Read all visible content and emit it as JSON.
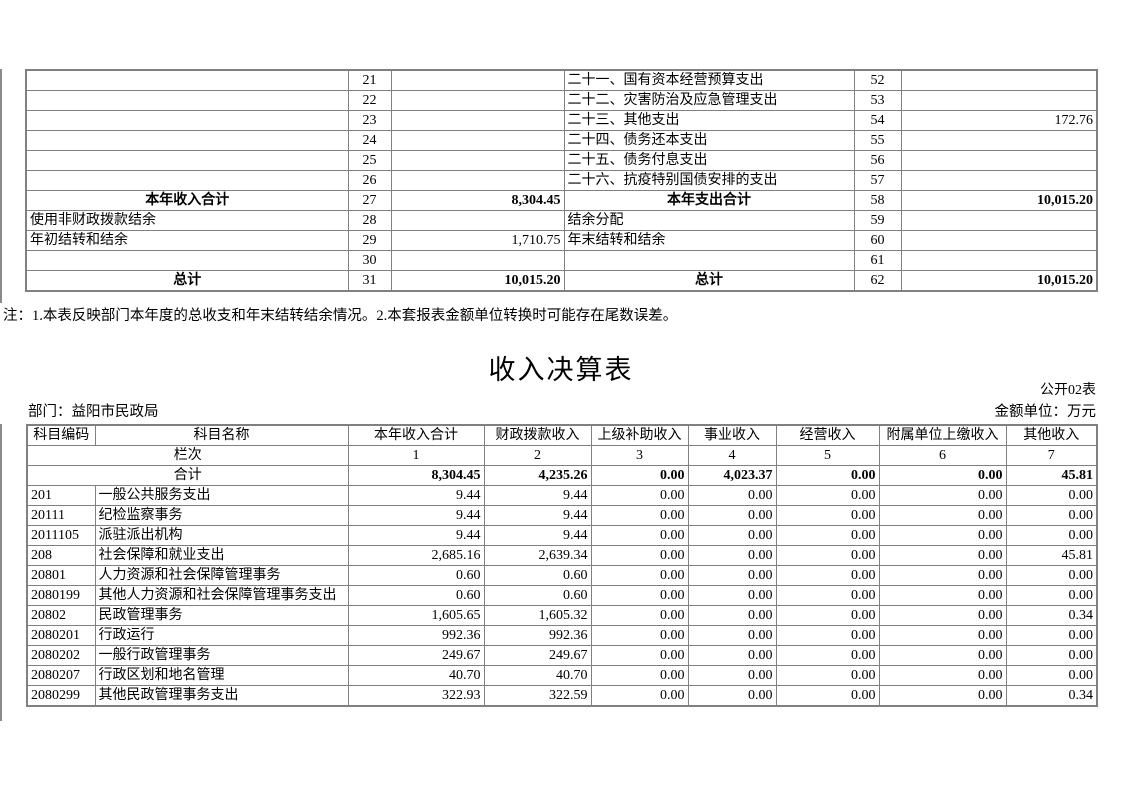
{
  "page": {
    "note": "注：1.本表反映部门本年度的总收支和年末结转结余情况。2.本套报表金额单位转换时可能存在尾数误差。",
    "title": "收入决算表",
    "table_code": "公开02表",
    "department": "部门：益阳市民政局",
    "unit": "金额单位：万元"
  },
  "summary_table": {
    "rows": [
      {
        "l": "",
        "ln": "21",
        "lv": "",
        "r": "二十一、国有资本经营预算支出",
        "rn": "52",
        "rv": "",
        "hl": false
      },
      {
        "l": "",
        "ln": "22",
        "lv": "",
        "r": "二十二、灾害防治及应急管理支出",
        "rn": "53",
        "rv": "",
        "hl": false
      },
      {
        "l": "",
        "ln": "23",
        "lv": "",
        "r": "二十三、其他支出",
        "rn": "54",
        "rv": "172.76",
        "hl": false
      },
      {
        "l": "",
        "ln": "24",
        "lv": "",
        "r": "二十四、债务还本支出",
        "rn": "55",
        "rv": "",
        "hl": false
      },
      {
        "l": "",
        "ln": "25",
        "lv": "",
        "r": "二十五、债务付息支出",
        "rn": "56",
        "rv": "",
        "hl": false
      },
      {
        "l": "",
        "ln": "26",
        "lv": "",
        "r": "二十六、抗疫特别国债安排的支出",
        "rn": "57",
        "rv": "",
        "hl": false
      },
      {
        "l": "本年收入合计",
        "ln": "27",
        "lv": "8,304.45",
        "r": "本年支出合计",
        "rn": "58",
        "rv": "10,015.20",
        "hl": true
      },
      {
        "l": "使用非财政拨款结余",
        "ln": "28",
        "lv": "",
        "r": "结余分配",
        "rn": "59",
        "rv": "",
        "hl": false
      },
      {
        "l": "年初结转和结余",
        "ln": "29",
        "lv": "1,710.75",
        "r": "年末结转和结余",
        "rn": "60",
        "rv": "",
        "hl": false
      },
      {
        "l": "",
        "ln": "30",
        "lv": "",
        "r": "",
        "rn": "61",
        "rv": "",
        "hl": false
      },
      {
        "l": "总计",
        "ln": "31",
        "lv": "10,015.20",
        "r": "总计",
        "rn": "62",
        "rv": "10,015.20",
        "hl": true
      }
    ]
  },
  "income_table": {
    "headers": [
      "科目编码",
      "科目名称",
      "本年收入合计",
      "财政拨款收入",
      "上级补助收入",
      "事业收入",
      "经营收入",
      "附属单位上缴收入",
      "其他收入"
    ],
    "lanci_label": "栏次",
    "lanci": [
      "1",
      "2",
      "3",
      "4",
      "5",
      "6",
      "7"
    ],
    "total_label": "合计",
    "total": [
      "8,304.45",
      "4,235.26",
      "0.00",
      "4,023.37",
      "0.00",
      "0.00",
      "45.81"
    ],
    "rows": [
      {
        "code": "201",
        "name": "一般公共服务支出",
        "values": [
          "9.44",
          "9.44",
          "0.00",
          "0.00",
          "0.00",
          "0.00",
          "0.00"
        ]
      },
      {
        "code": "20111",
        "name": "纪检监察事务",
        "values": [
          "9.44",
          "9.44",
          "0.00",
          "0.00",
          "0.00",
          "0.00",
          "0.00"
        ]
      },
      {
        "code": "2011105",
        "name": "派驻派出机构",
        "values": [
          "9.44",
          "9.44",
          "0.00",
          "0.00",
          "0.00",
          "0.00",
          "0.00"
        ]
      },
      {
        "code": "208",
        "name": "社会保障和就业支出",
        "values": [
          "2,685.16",
          "2,639.34",
          "0.00",
          "0.00",
          "0.00",
          "0.00",
          "45.81"
        ]
      },
      {
        "code": "20801",
        "name": "人力资源和社会保障管理事务",
        "values": [
          "0.60",
          "0.60",
          "0.00",
          "0.00",
          "0.00",
          "0.00",
          "0.00"
        ]
      },
      {
        "code": "2080199",
        "name": "其他人力资源和社会保障管理事务支出",
        "values": [
          "0.60",
          "0.60",
          "0.00",
          "0.00",
          "0.00",
          "0.00",
          "0.00"
        ]
      },
      {
        "code": "20802",
        "name": "民政管理事务",
        "values": [
          "1,605.65",
          "1,605.32",
          "0.00",
          "0.00",
          "0.00",
          "0.00",
          "0.34"
        ]
      },
      {
        "code": "2080201",
        "name": "行政运行",
        "values": [
          "992.36",
          "992.36",
          "0.00",
          "0.00",
          "0.00",
          "0.00",
          "0.00"
        ]
      },
      {
        "code": "2080202",
        "name": "一般行政管理事务",
        "values": [
          "249.67",
          "249.67",
          "0.00",
          "0.00",
          "0.00",
          "0.00",
          "0.00"
        ]
      },
      {
        "code": "2080207",
        "name": "行政区划和地名管理",
        "values": [
          "40.70",
          "40.70",
          "0.00",
          "0.00",
          "0.00",
          "0.00",
          "0.00"
        ]
      },
      {
        "code": "2080299",
        "name": "其他民政管理事务支出",
        "values": [
          "322.93",
          "322.59",
          "0.00",
          "0.00",
          "0.00",
          "0.00",
          "0.34"
        ]
      }
    ]
  }
}
